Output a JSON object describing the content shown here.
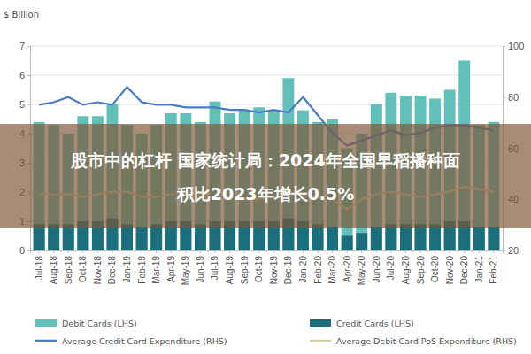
{
  "chart_data": {
    "type": "bar",
    "y_label": "$ Billion",
    "annotations": [
      "股市中的杠杆 国家统计局：2024年全国早稻播种面",
      "积比2023年增长0.5%"
    ],
    "categories": [
      "Jul-18",
      "Aug-18",
      "Sep-18",
      "Oct-18",
      "Nov-18",
      "Dec-18",
      "Jan-19",
      "Feb-19",
      "Mar-19",
      "Apr-19",
      "May-19",
      "Jun-19",
      "Jul-19",
      "Aug-19",
      "Sep-19",
      "Oct-19",
      "Nov-19",
      "Dec-19",
      "Jan-20",
      "Feb-20",
      "Mar-20",
      "Apr-20",
      "May-20",
      "Jun-20",
      "Jul-20",
      "Aug-20",
      "Sep-20",
      "Oct-20",
      "Nov-20",
      "Dec-20",
      "Jan-21",
      "Feb-21"
    ],
    "series": [
      {
        "name": "Debit Cards (LHS)",
        "type": "bar",
        "color": "#62c0bb",
        "values": [
          4.4,
          4.3,
          4.0,
          4.6,
          4.6,
          5.0,
          4.3,
          4.0,
          4.3,
          4.7,
          4.7,
          4.4,
          5.1,
          4.7,
          4.8,
          4.9,
          4.8,
          5.9,
          4.8,
          4.4,
          4.5,
          3.5,
          4.0,
          5.0,
          5.4,
          5.3,
          5.3,
          5.2,
          5.5,
          6.5,
          4.3,
          4.4
        ]
      },
      {
        "name": "Credit Cards (LHS)",
        "type": "bar",
        "color": "#1b6f7c",
        "values": [
          0.9,
          0.9,
          0.9,
          1.0,
          1.0,
          1.1,
          0.9,
          0.8,
          0.9,
          1.0,
          1.0,
          0.9,
          1.0,
          1.0,
          1.0,
          1.0,
          1.0,
          1.1,
          1.0,
          0.9,
          0.8,
          0.5,
          0.6,
          0.8,
          0.9,
          0.9,
          0.9,
          0.9,
          1.0,
          1.0,
          0.8,
          0.8
        ]
      },
      {
        "name": "Average Credit Card Expenditure (RHS)",
        "type": "line",
        "axis": "y2",
        "color": "#4a7cc4",
        "values": [
          77,
          78,
          80,
          77,
          78,
          77,
          84,
          78,
          77,
          77,
          76,
          76,
          76,
          75,
          75,
          74,
          75,
          74,
          80,
          73,
          66,
          61,
          63,
          65,
          67,
          65,
          66,
          68,
          69,
          69,
          68,
          67
        ]
      },
      {
        "name": "Average Debit Card PoS Expenditure (RHS)",
        "type": "line",
        "axis": "y2",
        "color": "#d9cf9c",
        "values": [
          42,
          42,
          42,
          41,
          42,
          43,
          43,
          41,
          41,
          42,
          42,
          41,
          41,
          41,
          40,
          40,
          41,
          42,
          42,
          41,
          40,
          36,
          40,
          42,
          43,
          42,
          41,
          42,
          43,
          45,
          44,
          43
        ]
      }
    ],
    "ylim": [
      0,
      7
    ],
    "yticks": [
      0,
      1,
      2,
      3,
      4,
      5,
      6,
      7
    ],
    "y2lim": [
      20,
      100
    ],
    "y2ticks": [
      20,
      40,
      60,
      80,
      100
    ],
    "grid": true,
    "legend": "bottom"
  }
}
